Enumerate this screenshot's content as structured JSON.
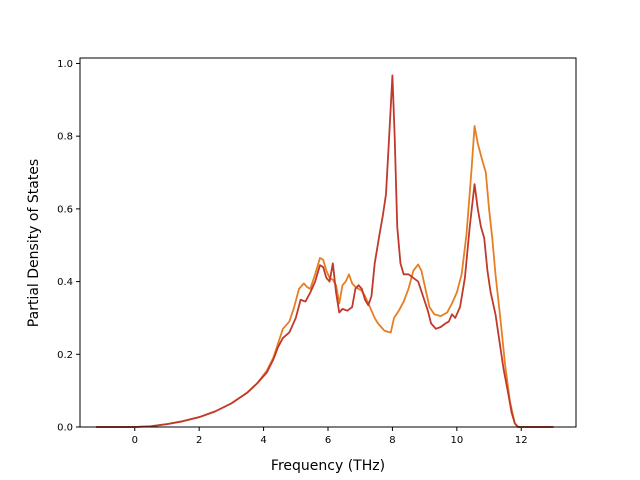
{
  "chart_data": {
    "type": "line",
    "title": "",
    "xlabel": "Frequency (THz)",
    "ylabel": "Partial Density of States",
    "xlim": [
      -1.7,
      13.7
    ],
    "ylim": [
      0.0,
      1.015
    ],
    "xticks": [
      0,
      2,
      4,
      6,
      8,
      10,
      12
    ],
    "yticks": [
      0.0,
      0.2,
      0.4,
      0.6,
      0.8,
      1.0
    ],
    "xtick_labels": [
      "0",
      "2",
      "4",
      "6",
      "8",
      "10",
      "12"
    ],
    "ytick_labels": [
      "0.0",
      "0.2",
      "0.4",
      "0.6",
      "0.8",
      "1.0"
    ],
    "grid": false,
    "legend": "none",
    "series": [
      {
        "color": "#e67e22",
        "points": [
          [
            -1.2,
            0.0
          ],
          [
            0.0,
            0.0
          ],
          [
            0.5,
            0.002
          ],
          [
            1.0,
            0.008
          ],
          [
            1.5,
            0.016
          ],
          [
            2.0,
            0.027
          ],
          [
            2.5,
            0.043
          ],
          [
            3.0,
            0.065
          ],
          [
            3.5,
            0.095
          ],
          [
            3.8,
            0.12
          ],
          [
            4.1,
            0.155
          ],
          [
            4.3,
            0.19
          ],
          [
            4.45,
            0.23
          ],
          [
            4.6,
            0.27
          ],
          [
            4.8,
            0.29
          ],
          [
            4.95,
            0.33
          ],
          [
            5.1,
            0.38
          ],
          [
            5.25,
            0.395
          ],
          [
            5.35,
            0.385
          ],
          [
            5.45,
            0.38
          ],
          [
            5.6,
            0.42
          ],
          [
            5.75,
            0.465
          ],
          [
            5.85,
            0.46
          ],
          [
            5.95,
            0.43
          ],
          [
            6.05,
            0.41
          ],
          [
            6.15,
            0.405
          ],
          [
            6.25,
            0.39
          ],
          [
            6.35,
            0.34
          ],
          [
            6.45,
            0.39
          ],
          [
            6.55,
            0.4
          ],
          [
            6.65,
            0.42
          ],
          [
            6.75,
            0.395
          ],
          [
            6.85,
            0.385
          ],
          [
            6.95,
            0.38
          ],
          [
            7.05,
            0.375
          ],
          [
            7.15,
            0.36
          ],
          [
            7.25,
            0.34
          ],
          [
            7.35,
            0.32
          ],
          [
            7.45,
            0.3
          ],
          [
            7.55,
            0.285
          ],
          [
            7.65,
            0.275
          ],
          [
            7.75,
            0.265
          ],
          [
            7.85,
            0.262
          ],
          [
            7.95,
            0.26
          ],
          [
            8.05,
            0.3
          ],
          [
            8.2,
            0.32
          ],
          [
            8.35,
            0.345
          ],
          [
            8.5,
            0.38
          ],
          [
            8.65,
            0.43
          ],
          [
            8.8,
            0.447
          ],
          [
            8.9,
            0.43
          ],
          [
            9.0,
            0.39
          ],
          [
            9.15,
            0.33
          ],
          [
            9.3,
            0.31
          ],
          [
            9.5,
            0.305
          ],
          [
            9.7,
            0.315
          ],
          [
            9.85,
            0.34
          ],
          [
            10.0,
            0.37
          ],
          [
            10.15,
            0.42
          ],
          [
            10.3,
            0.53
          ],
          [
            10.45,
            0.7
          ],
          [
            10.55,
            0.828
          ],
          [
            10.65,
            0.78
          ],
          [
            10.8,
            0.73
          ],
          [
            10.9,
            0.7
          ],
          [
            11.0,
            0.6
          ],
          [
            11.1,
            0.52
          ],
          [
            11.2,
            0.42
          ],
          [
            11.35,
            0.3
          ],
          [
            11.5,
            0.17
          ],
          [
            11.65,
            0.07
          ],
          [
            11.8,
            0.01
          ],
          [
            11.9,
            0.0
          ],
          [
            13.0,
            0.0
          ]
        ]
      },
      {
        "color": "#c0392b",
        "points": [
          [
            -1.2,
            0.0
          ],
          [
            0.0,
            0.0
          ],
          [
            0.5,
            0.002
          ],
          [
            1.0,
            0.008
          ],
          [
            1.5,
            0.016
          ],
          [
            2.0,
            0.027
          ],
          [
            2.5,
            0.043
          ],
          [
            3.0,
            0.065
          ],
          [
            3.5,
            0.095
          ],
          [
            3.8,
            0.12
          ],
          [
            4.1,
            0.15
          ],
          [
            4.3,
            0.185
          ],
          [
            4.45,
            0.22
          ],
          [
            4.6,
            0.245
          ],
          [
            4.8,
            0.26
          ],
          [
            5.0,
            0.3
          ],
          [
            5.15,
            0.35
          ],
          [
            5.3,
            0.345
          ],
          [
            5.45,
            0.37
          ],
          [
            5.6,
            0.4
          ],
          [
            5.75,
            0.445
          ],
          [
            5.85,
            0.44
          ],
          [
            5.95,
            0.41
          ],
          [
            6.05,
            0.4
          ],
          [
            6.15,
            0.45
          ],
          [
            6.25,
            0.37
          ],
          [
            6.35,
            0.315
          ],
          [
            6.45,
            0.325
          ],
          [
            6.6,
            0.32
          ],
          [
            6.75,
            0.33
          ],
          [
            6.85,
            0.38
          ],
          [
            6.95,
            0.39
          ],
          [
            7.05,
            0.38
          ],
          [
            7.15,
            0.35
          ],
          [
            7.25,
            0.335
          ],
          [
            7.35,
            0.36
          ],
          [
            7.45,
            0.45
          ],
          [
            7.6,
            0.53
          ],
          [
            7.7,
            0.58
          ],
          [
            7.8,
            0.64
          ],
          [
            7.9,
            0.8
          ],
          [
            8.0,
            0.967
          ],
          [
            8.07,
            0.8
          ],
          [
            8.15,
            0.55
          ],
          [
            8.25,
            0.45
          ],
          [
            8.35,
            0.42
          ],
          [
            8.5,
            0.42
          ],
          [
            8.65,
            0.41
          ],
          [
            8.8,
            0.4
          ],
          [
            8.95,
            0.36
          ],
          [
            9.1,
            0.32
          ],
          [
            9.2,
            0.285
          ],
          [
            9.35,
            0.27
          ],
          [
            9.5,
            0.275
          ],
          [
            9.65,
            0.285
          ],
          [
            9.75,
            0.29
          ],
          [
            9.85,
            0.31
          ],
          [
            9.95,
            0.3
          ],
          [
            10.1,
            0.33
          ],
          [
            10.25,
            0.41
          ],
          [
            10.4,
            0.55
          ],
          [
            10.55,
            0.668
          ],
          [
            10.65,
            0.6
          ],
          [
            10.75,
            0.55
          ],
          [
            10.85,
            0.52
          ],
          [
            10.95,
            0.43
          ],
          [
            11.05,
            0.37
          ],
          [
            11.2,
            0.31
          ],
          [
            11.3,
            0.25
          ],
          [
            11.45,
            0.16
          ],
          [
            11.6,
            0.09
          ],
          [
            11.7,
            0.04
          ],
          [
            11.8,
            0.01
          ],
          [
            11.9,
            0.0
          ],
          [
            13.0,
            0.0
          ]
        ]
      }
    ]
  }
}
